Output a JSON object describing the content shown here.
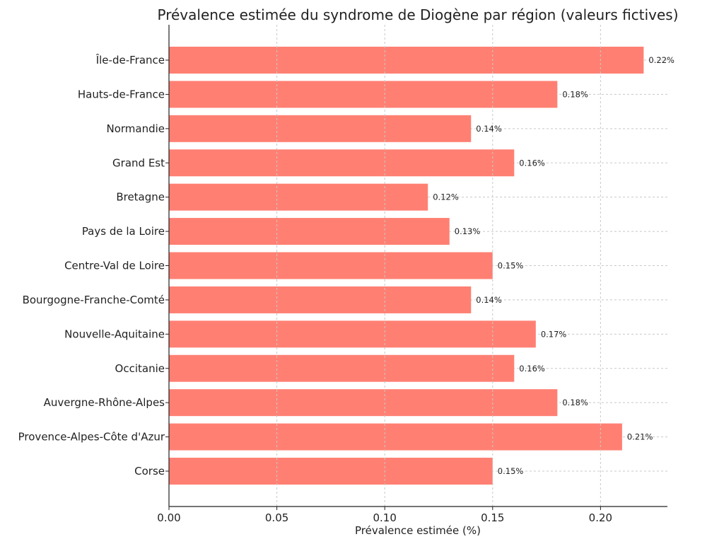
{
  "chart_data": {
    "type": "bar",
    "orientation": "horizontal",
    "title": "Prévalence estimée du syndrome de Diogène par région (valeurs fictives)",
    "xlabel": "Prévalence estimée (%)",
    "ylabel": "",
    "categories": [
      "Île-de-France",
      "Hauts-de-France",
      "Normandie",
      "Grand Est",
      "Bretagne",
      "Pays de la Loire",
      "Centre-Val de Loire",
      "Bourgogne-Franche-Comté",
      "Nouvelle-Aquitaine",
      "Occitanie",
      "Auvergne-Rhône-Alpes",
      "Provence-Alpes-Côte d'Azur",
      "Corse"
    ],
    "values": [
      0.22,
      0.18,
      0.14,
      0.16,
      0.12,
      0.13,
      0.15,
      0.14,
      0.17,
      0.16,
      0.18,
      0.21,
      0.15
    ],
    "value_labels": [
      "0.22%",
      "0.18%",
      "0.14%",
      "0.16%",
      "0.12%",
      "0.13%",
      "0.15%",
      "0.14%",
      "0.17%",
      "0.16%",
      "0.18%",
      "0.21%",
      "0.15%"
    ],
    "xlim": [
      0,
      0.231
    ],
    "xticks": [
      0.0,
      0.05,
      0.1,
      0.15,
      0.2
    ],
    "xtick_labels": [
      "0.00",
      "0.05",
      "0.10",
      "0.15",
      "0.20"
    ],
    "grid": true,
    "bar_color": "#ff8073"
  }
}
